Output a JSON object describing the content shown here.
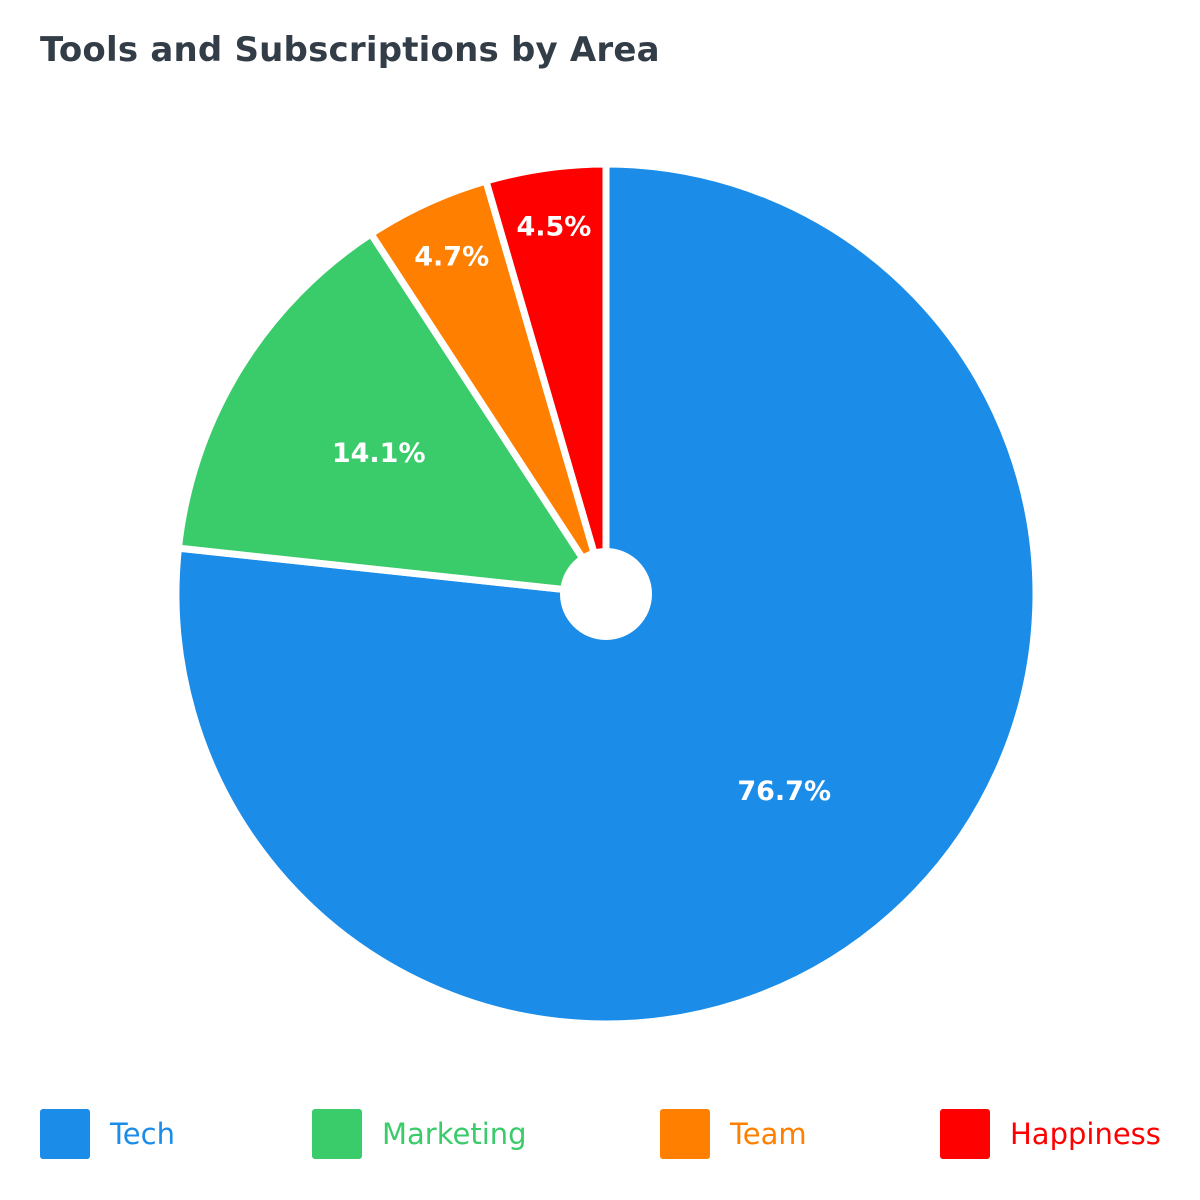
{
  "chart_data": {
    "type": "pie",
    "title": "Tools and Subscriptions by Area",
    "categories": [
      "Tech",
      "Marketing",
      "Team",
      "Happiness"
    ],
    "values": [
      76.7,
      14.1,
      4.7,
      4.5
    ],
    "labels": [
      "76.7%",
      "14.1%",
      "4.7%",
      "4.5%"
    ],
    "colors": [
      "#1b8ce8",
      "#3acb6a",
      "#ff7f00",
      "#ff0000"
    ],
    "legend": "bottom"
  }
}
